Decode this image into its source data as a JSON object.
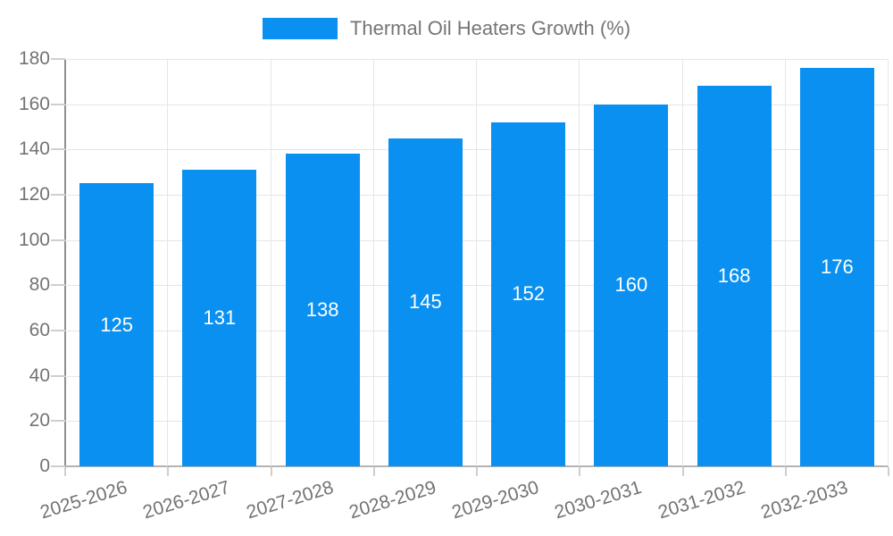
{
  "chart_data": {
    "type": "bar",
    "title": "Thermal Oil Heaters Growth (%)",
    "categories": [
      "2025-2026",
      "2026-2027",
      "2027-2028",
      "2028-2029",
      "2029-2030",
      "2030-2031",
      "2031-2032",
      "2032-2033"
    ],
    "series": [
      {
        "name": "Thermal Oil Heaters Growth (%)",
        "color": "#0a90f0",
        "values": [
          125,
          131,
          138,
          145,
          152,
          160,
          168,
          176
        ]
      }
    ],
    "xlabel": "",
    "ylabel": "",
    "ylim": [
      0,
      180
    ],
    "yticks": [
      0,
      20,
      40,
      60,
      80,
      100,
      120,
      140,
      160,
      180
    ],
    "grid": true,
    "legend_position": "top",
    "value_labels": "inside-center",
    "colors": {
      "bar": "#0a90f0",
      "value_label_text": "#ffffff",
      "axis_tick_text": "#737373",
      "legend_text": "#757575",
      "gridline": "#e6e6e6",
      "y_axis_line": "#8f8f8f",
      "x_axis_line": "#b3b3b3",
      "background": "#ffffff"
    }
  }
}
